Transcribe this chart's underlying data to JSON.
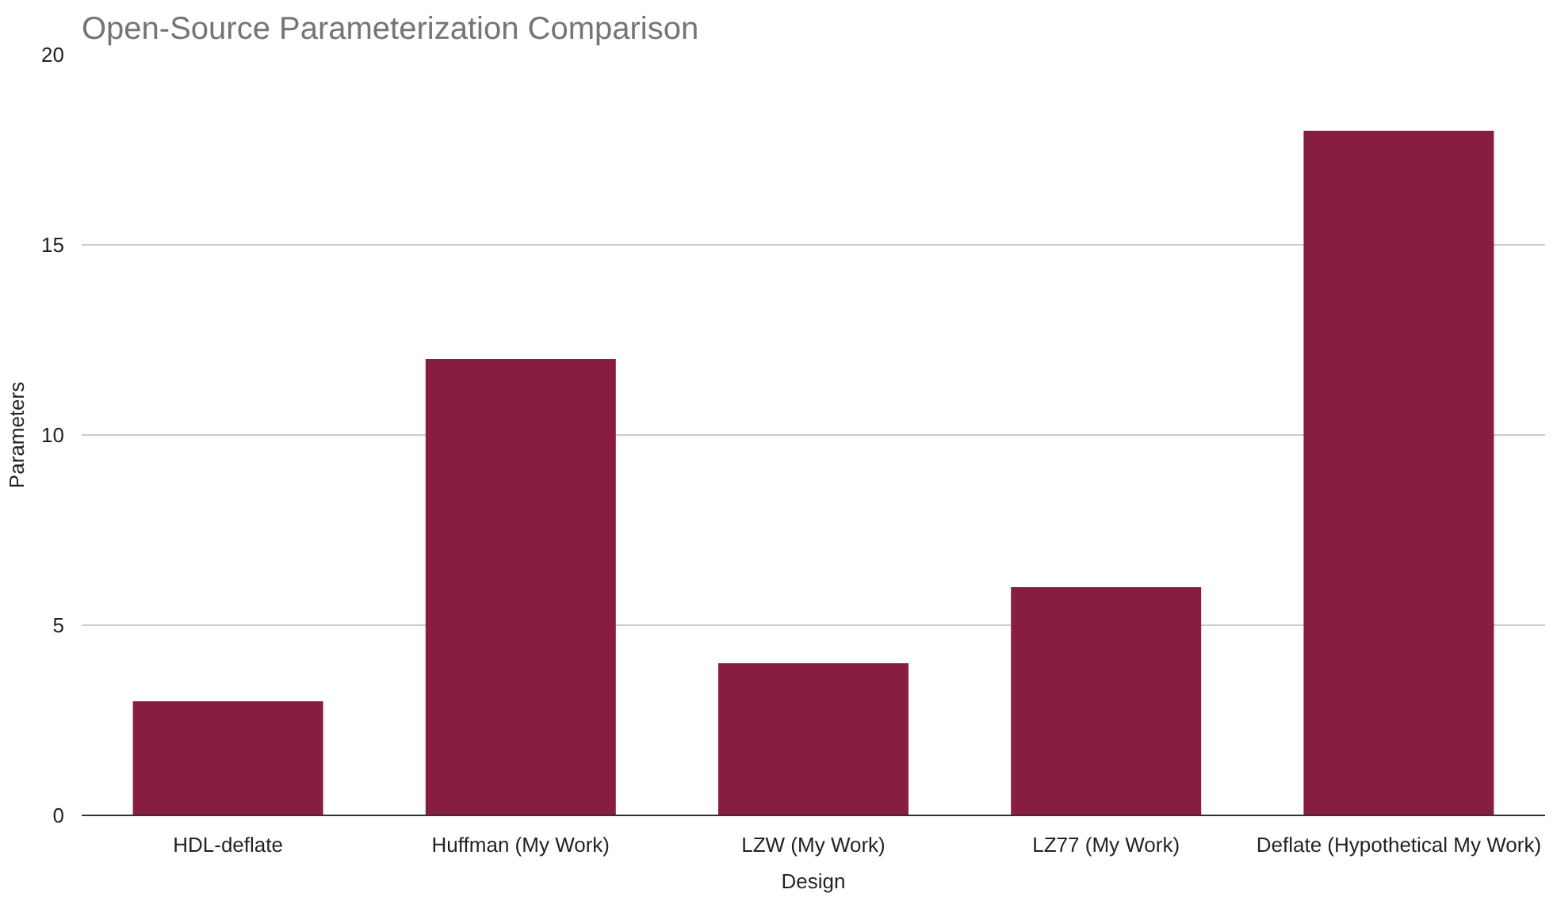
{
  "chart_data": {
    "type": "bar",
    "title": "Open-Source Parameterization Comparison",
    "xlabel": "Design",
    "ylabel": "Parameters",
    "categories": [
      "HDL-deflate",
      "Huffman (My Work)",
      "LZW (My Work)",
      "LZ77 (My Work)",
      "Deflate (Hypothetical My Work)"
    ],
    "values": [
      3,
      12,
      4,
      6,
      18
    ],
    "color": "#881d42",
    "ylim": [
      0,
      20
    ],
    "yticks": [
      0,
      5,
      10,
      15,
      20
    ],
    "grid": "y"
  }
}
